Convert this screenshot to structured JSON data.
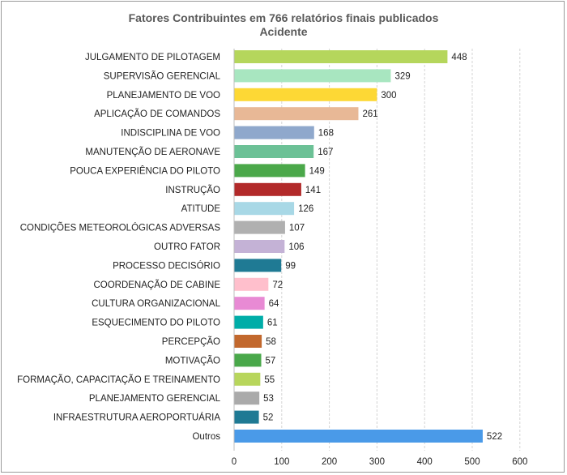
{
  "chart_data": {
    "type": "bar",
    "orientation": "horizontal",
    "title": "Fatores Contribuintes em 766 relatórios finais publicados",
    "subtitle": "Acidente",
    "categories": [
      "JULGAMENTO DE PILOTAGEM",
      "SUPERVISÃO GERENCIAL",
      "PLANEJAMENTO DE VOO",
      "APLICAÇÃO DE COMANDOS",
      "INDISCIPLINA DE VOO",
      "MANUTENÇÃO DE AERONAVE",
      "POUCA EXPERIÊNCIA DO PILOTO",
      "INSTRUÇÃO",
      "ATITUDE",
      "CONDIÇÕES METEOROLÓGICAS ADVERSAS",
      "OUTRO FATOR",
      "PROCESSO DECISÓRIO",
      "COORDENAÇÃO DE CABINE",
      "CULTURA ORGANIZACIONAL",
      "ESQUECIMENTO DO PILOTO",
      "PERCEPÇÃO",
      "MOTIVAÇÃO",
      "FORMAÇÃO, CAPACITAÇÃO E TREINAMENTO",
      "PLANEJAMENTO GERENCIAL",
      "INFRAESTRUTURA AEROPORTUÁRIA",
      "Outros"
    ],
    "values": [
      448,
      329,
      300,
      261,
      168,
      167,
      149,
      141,
      126,
      107,
      106,
      99,
      72,
      64,
      61,
      58,
      57,
      55,
      53,
      52,
      522
    ],
    "colors": [
      "#b5d65c",
      "#a8e6c0",
      "#fdd835",
      "#e8b896",
      "#8fa8cc",
      "#6cc196",
      "#4ba84a",
      "#b22a2a",
      "#a8d8e6",
      "#b0b0b0",
      "#c4b2d6",
      "#1f7a94",
      "#ffbfcc",
      "#e88ad4",
      "#00ada8",
      "#c2682d",
      "#49a84a",
      "#b8d65c",
      "#aaaaaa",
      "#1f7a94",
      "#4a9ae8"
    ],
    "xticks": [
      0,
      100,
      200,
      300,
      400,
      500,
      600
    ],
    "xlim": [
      0,
      600
    ],
    "grid": "vertical-dashed",
    "data_labels": true
  }
}
